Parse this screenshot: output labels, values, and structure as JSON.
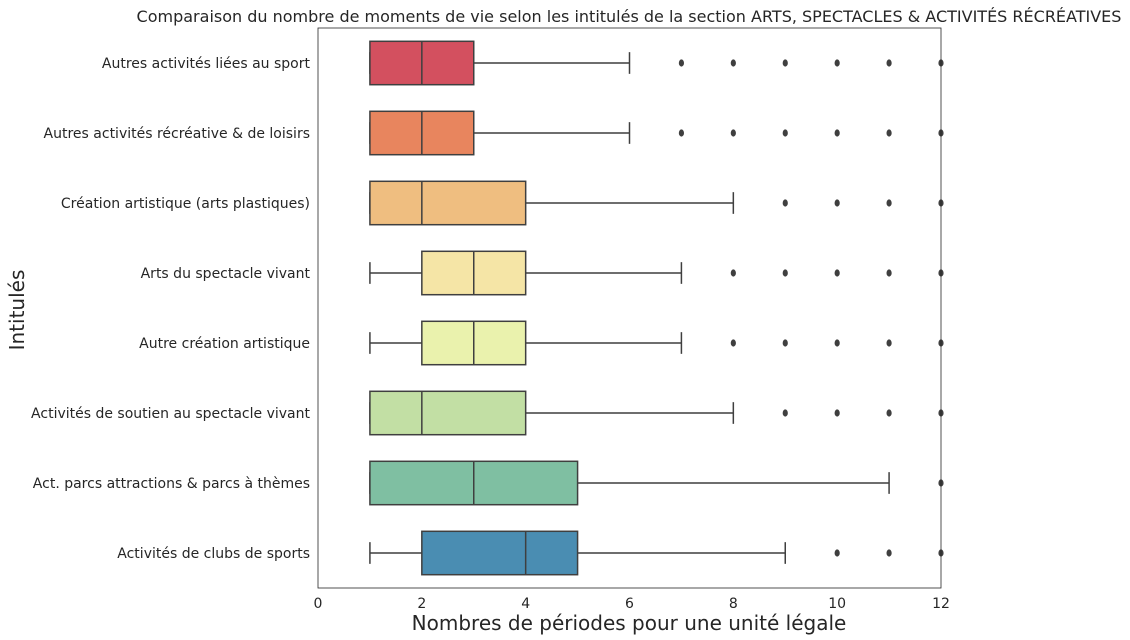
{
  "chart_data": {
    "type": "box",
    "orientation": "horizontal",
    "title": "Comparaison du nombre de moments de vie selon les intitulés de la section ARTS, SPECTACLES & ACTIVITÉS RÉCRÉATIVES",
    "xlabel": "Nombres de périodes pour une unité légale",
    "ylabel": "Intitulés",
    "xlim": [
      0,
      12
    ],
    "xticks": [
      0,
      2,
      4,
      6,
      8,
      10,
      12
    ],
    "grid": false,
    "categories": [
      {
        "label": "Autres activités liées au sport",
        "whislo": 1,
        "q1": 1,
        "med": 2,
        "q3": 3,
        "whishi": 6,
        "fliers": [
          7,
          8,
          9,
          10,
          11,
          12
        ],
        "color": "#d3505f"
      },
      {
        "label": "Autres activités récréative & de loisirs",
        "whislo": 1,
        "q1": 1,
        "med": 2,
        "q3": 3,
        "whishi": 6,
        "fliers": [
          7,
          8,
          9,
          10,
          11,
          12
        ],
        "color": "#e8855e"
      },
      {
        "label": "Création artistique (arts plastiques)",
        "whislo": 1,
        "q1": 1,
        "med": 2,
        "q3": 4,
        "whishi": 8,
        "fliers": [
          9,
          10,
          11,
          12
        ],
        "color": "#efbe80"
      },
      {
        "label": "Arts du spectacle vivant",
        "whislo": 1,
        "q1": 2,
        "med": 3,
        "q3": 4,
        "whishi": 7,
        "fliers": [
          8,
          9,
          10,
          11,
          12
        ],
        "color": "#f5e5a6"
      },
      {
        "label": "Autre création artistique",
        "whislo": 1,
        "q1": 2,
        "med": 3,
        "q3": 4,
        "whishi": 7,
        "fliers": [
          8,
          9,
          10,
          11,
          12
        ],
        "color": "#eaf2ad"
      },
      {
        "label": "Activités de soutien au spectacle vivant",
        "whislo": 1,
        "q1": 1,
        "med": 2,
        "q3": 4,
        "whishi": 8,
        "fliers": [
          9,
          10,
          11,
          12
        ],
        "color": "#c2dfa4"
      },
      {
        "label": "Act. parcs attractions & parcs à thèmes",
        "whislo": 1,
        "q1": 1,
        "med": 3,
        "q3": 5,
        "whishi": 11,
        "fliers": [
          12
        ],
        "color": "#7fbfa2"
      },
      {
        "label": "Activités de clubs de sports",
        "whislo": 1,
        "q1": 2,
        "med": 4,
        "q3": 5,
        "whishi": 9,
        "fliers": [
          10,
          11,
          12
        ],
        "color": "#4a8db2"
      }
    ]
  }
}
